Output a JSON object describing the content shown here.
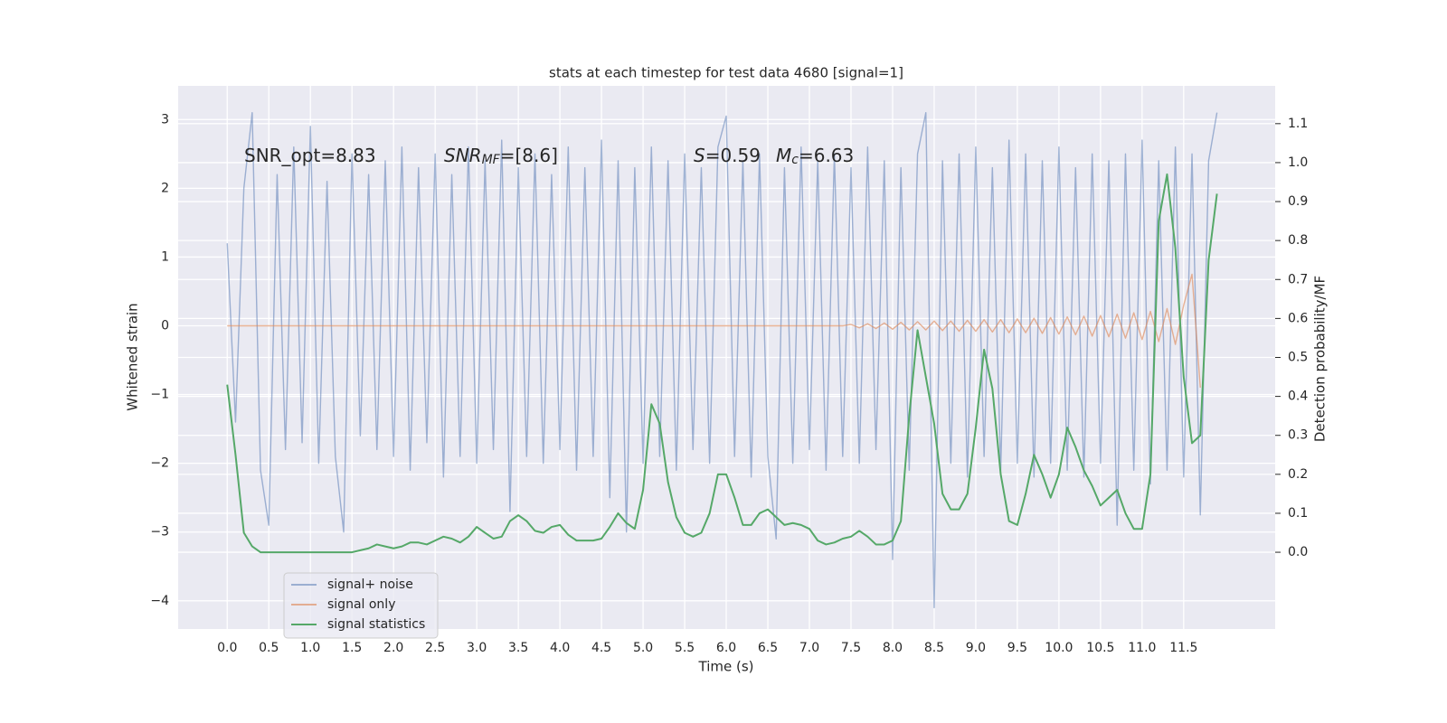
{
  "chart_data": {
    "type": "line",
    "title": "stats at each timestep for test data 4680 [signal=1]",
    "xlabel": "Time (s)",
    "ylabel": "Whitened strain",
    "y2label": "Detection probability/MF",
    "grid": true,
    "xlim": [
      -0.59,
      12.6
    ],
    "ylim": [
      -4.41,
      3.49
    ],
    "y2lim": [
      -0.197,
      1.197
    ],
    "xticks": [
      {
        "value": 0,
        "label": "0.0"
      },
      0.5,
      {
        "value": 1,
        "label": "1.0"
      },
      1.5,
      {
        "value": 2,
        "label": "2.0"
      },
      2.5,
      {
        "value": 3,
        "label": "3.0"
      },
      3.5,
      {
        "value": 4,
        "label": "4.0"
      },
      4.5,
      {
        "value": 5,
        "label": "5.0"
      },
      5.5,
      {
        "value": 6,
        "label": "6.0"
      },
      6.5,
      {
        "value": 7,
        "label": "7.0"
      },
      7.5,
      {
        "value": 8,
        "label": "8.0"
      },
      8.5,
      {
        "value": 9,
        "label": "9.0"
      },
      9.5,
      {
        "value": 10,
        "label": "10.0"
      },
      10.5,
      {
        "value": 11,
        "label": "11.0"
      },
      11.5
    ],
    "yticks": [
      {
        "value": -4,
        "label": "−4"
      },
      {
        "value": -3,
        "label": "−3"
      },
      {
        "value": -2,
        "label": "−2"
      },
      {
        "value": -1,
        "label": "−1"
      },
      0,
      1,
      2,
      3
    ],
    "y2ticks": [
      {
        "value": 0,
        "label": "0.0"
      },
      0.1,
      0.2,
      0.3,
      0.4,
      0.5,
      0.6,
      0.7,
      0.8,
      0.9,
      {
        "value": 1,
        "label": "1.0"
      },
      1.1
    ],
    "annotations": [
      [
        {
          "text": "SNR_opt=8.83"
        }
      ],
      [
        {
          "text": "SNR",
          "italic": true
        },
        {
          "text": "MF",
          "italic": true,
          "sub": true
        },
        {
          "text": "=[8.6]"
        }
      ],
      [
        {
          "text": "S",
          "italic": true
        },
        {
          "text": "=0.59"
        }
      ],
      [
        {
          "text": "M",
          "italic": true
        },
        {
          "text": "c",
          "italic": true,
          "sub": true
        },
        {
          "text": "=6.63"
        }
      ]
    ],
    "x": [
      0,
      0.1,
      0.2,
      0.3,
      0.4,
      0.5,
      0.6,
      0.7,
      0.8,
      0.9,
      1,
      1.1,
      1.2,
      1.3,
      1.4,
      1.5,
      1.6,
      1.7,
      1.8,
      1.9,
      2,
      2.1,
      2.2,
      2.3,
      2.4,
      2.5,
      2.6,
      2.7,
      2.8,
      2.9,
      3,
      3.1,
      3.2,
      3.3,
      3.4,
      3.5,
      3.6,
      3.7,
      3.8,
      3.9,
      4,
      4.1,
      4.2,
      4.3,
      4.4,
      4.5,
      4.6,
      4.7,
      4.8,
      4.9,
      5,
      5.1,
      5.2,
      5.3,
      5.4,
      5.5,
      5.6,
      5.7,
      5.8,
      5.9,
      6,
      6.1,
      6.2,
      6.3,
      6.4,
      6.5,
      6.6,
      6.7,
      6.8,
      6.9,
      7,
      7.1,
      7.2,
      7.3,
      7.4,
      7.5,
      7.6,
      7.7,
      7.8,
      7.9,
      8,
      8.1,
      8.2,
      8.3,
      8.4,
      8.5,
      8.6,
      8.7,
      8.8,
      8.9,
      9,
      9.1,
      9.2,
      9.3,
      9.4,
      9.5,
      9.6,
      9.7,
      9.8,
      9.9,
      10,
      10.1,
      10.2,
      10.3,
      10.4,
      10.5,
      10.6,
      10.7,
      10.8,
      10.9,
      11,
      11.1,
      11.2,
      11.3,
      11.4,
      11.5,
      11.6,
      11.7,
      11.8,
      11.9
    ],
    "series": [
      {
        "name": "signal+ noise",
        "color": "#4c72b0",
        "alpha": 0.5,
        "axis": "y",
        "values": [
          1.2,
          -1.4,
          2.0,
          3.1,
          -2.1,
          -2.9,
          2.2,
          -1.8,
          2.6,
          -1.7,
          2.9,
          -2.0,
          2.1,
          -1.9,
          -3.0,
          2.5,
          -1.6,
          2.2,
          -1.8,
          2.4,
          -1.9,
          2.6,
          -2.1,
          2.3,
          -1.7,
          2.5,
          -2.2,
          2.2,
          -1.9,
          2.6,
          -2.0,
          2.4,
          -1.8,
          2.7,
          -2.7,
          2.3,
          -1.9,
          2.5,
          -2.0,
          2.2,
          -1.8,
          2.6,
          -2.1,
          2.3,
          -1.9,
          2.7,
          -2.5,
          2.4,
          -3.0,
          2.3,
          -2.0,
          2.6,
          -1.9,
          2.4,
          -2.1,
          2.5,
          -1.8,
          2.3,
          -2.0,
          2.6,
          3.05,
          -1.9,
          2.4,
          -2.2,
          2.5,
          -1.9,
          -3.1,
          2.3,
          -2.0,
          2.6,
          -1.8,
          2.4,
          -2.1,
          2.5,
          -1.9,
          2.3,
          -2.0,
          2.6,
          -1.8,
          2.4,
          -3.4,
          2.3,
          -2.1,
          2.5,
          3.1,
          -4.1,
          2.4,
          -2.0,
          2.5,
          -2.2,
          2.6,
          -1.9,
          2.3,
          -2.1,
          2.7,
          -2.0,
          2.5,
          -2.2,
          2.4,
          -2.0,
          2.6,
          -2.1,
          2.3,
          -2.2,
          2.5,
          -2.0,
          2.4,
          -2.9,
          2.5,
          -2.1,
          2.7,
          -2.3,
          2.4,
          -2.1,
          2.6,
          -2.2,
          2.5,
          -2.75,
          2.4,
          3.1
        ]
      },
      {
        "name": "signal only",
        "color": "#dd8452",
        "alpha": 0.6,
        "axis": "y",
        "values": [
          0,
          0,
          0,
          0,
          0,
          0,
          0,
          0,
          0,
          0,
          0,
          0,
          0,
          0,
          0,
          0,
          0,
          0,
          0,
          0,
          0,
          0,
          0,
          0,
          0,
          0,
          0,
          0,
          0,
          0,
          0,
          0,
          0,
          0,
          0,
          0,
          0,
          0,
          0,
          0,
          0,
          0,
          0,
          0,
          0,
          0,
          0,
          0,
          0,
          0,
          0,
          0,
          0,
          0,
          0,
          0,
          0,
          0,
          0,
          0,
          0,
          0,
          0,
          0,
          0,
          0,
          0,
          0,
          0,
          0,
          0,
          0,
          0,
          0,
          0,
          0.02,
          -0.03,
          0.03,
          -0.04,
          0.04,
          -0.05,
          0.05,
          -0.06,
          0.06,
          -0.06,
          0.07,
          -0.07,
          0.07,
          -0.08,
          0.08,
          -0.08,
          0.09,
          -0.09,
          0.09,
          -0.1,
          0.1,
          -0.1,
          0.11,
          -0.11,
          0.12,
          -0.12,
          0.13,
          -0.13,
          0.14,
          -0.15,
          0.15,
          -0.16,
          0.17,
          -0.18,
          0.19,
          -0.2,
          0.21,
          -0.23,
          0.25,
          -0.27,
          0.3,
          0.75,
          -0.9,
          null,
          null
        ]
      },
      {
        "name": "signal statistics",
        "color": "#55a868",
        "alpha": 1,
        "axis": "y2",
        "values": [
          0.43,
          0.25,
          0.05,
          0.015,
          0.0,
          0.0,
          0.0,
          0.0,
          0.0,
          0.0,
          0.0,
          0.0,
          0.0,
          0.0,
          0.0,
          0.0,
          0.005,
          0.01,
          0.02,
          0.015,
          0.01,
          0.015,
          0.025,
          0.025,
          0.02,
          0.03,
          0.04,
          0.035,
          0.025,
          0.04,
          0.065,
          0.05,
          0.035,
          0.04,
          0.08,
          0.095,
          0.08,
          0.055,
          0.05,
          0.065,
          0.07,
          0.045,
          0.03,
          0.03,
          0.03,
          0.035,
          0.065,
          0.1,
          0.075,
          0.06,
          0.16,
          0.38,
          0.33,
          0.18,
          0.09,
          0.05,
          0.04,
          0.05,
          0.1,
          0.2,
          0.2,
          0.14,
          0.07,
          0.07,
          0.1,
          0.11,
          0.09,
          0.07,
          0.075,
          0.07,
          0.06,
          0.03,
          0.02,
          0.025,
          0.035,
          0.04,
          0.055,
          0.04,
          0.02,
          0.02,
          0.03,
          0.08,
          0.35,
          0.57,
          0.45,
          0.33,
          0.15,
          0.11,
          0.11,
          0.15,
          0.32,
          0.52,
          0.42,
          0.2,
          0.08,
          0.07,
          0.15,
          0.25,
          0.2,
          0.14,
          0.2,
          0.32,
          0.27,
          0.21,
          0.17,
          0.12,
          0.14,
          0.16,
          0.1,
          0.06,
          0.06,
          0.2,
          0.85,
          0.97,
          0.78,
          0.45,
          0.28,
          0.3,
          0.75,
          0.92
        ]
      }
    ]
  }
}
